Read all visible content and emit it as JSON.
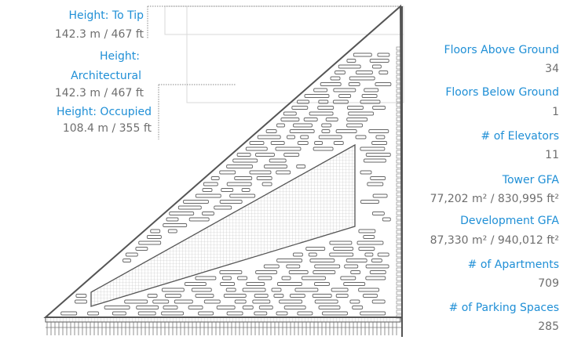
{
  "heights": {
    "tip": {
      "label": "Height: To Tip",
      "value": "142.3 m / 467 ft"
    },
    "architectural": {
      "label_line1": "Height:",
      "label_line2": "Architectural",
      "value": "142.3 m / 467 ft"
    },
    "occupied": {
      "label": "Height: Occupied",
      "value": "108.4 m / 355 ft"
    }
  },
  "stats": [
    {
      "label": "Floors Above Ground",
      "value": "34"
    },
    {
      "label": "Floors Below Ground",
      "value": "1"
    },
    {
      "label": "# of Elevators",
      "value": "11"
    },
    {
      "label": "Tower GFA",
      "value": "77,202 m² / 830,995 ft²"
    },
    {
      "label": "Development GFA",
      "value": "87,330 m² / 940,012 ft²"
    },
    {
      "label": "# of Apartments",
      "value": "709"
    },
    {
      "label": "# of Parking Spaces",
      "value": "285"
    }
  ],
  "colors": {
    "label": "#1f8fd6",
    "value": "#6e6e6e",
    "outline": "#555555",
    "leader": "#888888"
  }
}
